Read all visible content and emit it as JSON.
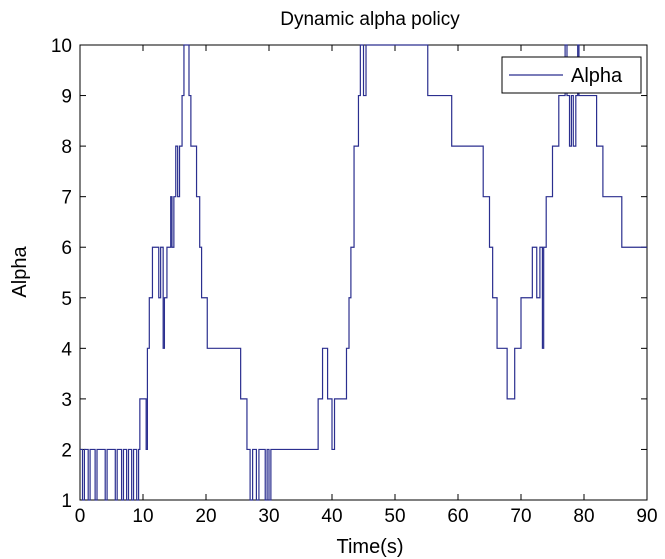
{
  "chart_data": {
    "type": "line",
    "title": "Dynamic alpha policy",
    "xlabel": "Time(s)",
    "ylabel": "Alpha",
    "xlim": [
      0,
      90
    ],
    "ylim": [
      1,
      10
    ],
    "xticks": [
      "0",
      "10",
      "20",
      "30",
      "40",
      "50",
      "60",
      "70",
      "80",
      "90"
    ],
    "yticks": [
      "1",
      "2",
      "3",
      "4",
      "5",
      "6",
      "7",
      "8",
      "9",
      "10"
    ],
    "grid": false,
    "legend_position": "top-right",
    "series": [
      {
        "name": "Alpha",
        "color": "#2b2f8f",
        "step": true,
        "points": [
          [
            0,
            2
          ],
          [
            0.4,
            1
          ],
          [
            0.7,
            2
          ],
          [
            1.3,
            1
          ],
          [
            1.6,
            2
          ],
          [
            2.4,
            1
          ],
          [
            2.7,
            2
          ],
          [
            4,
            1
          ],
          [
            4.3,
            2
          ],
          [
            5.6,
            1
          ],
          [
            5.9,
            2
          ],
          [
            6.6,
            1
          ],
          [
            6.9,
            2
          ],
          [
            7.4,
            1
          ],
          [
            7.7,
            2
          ],
          [
            8.2,
            1
          ],
          [
            8.5,
            2
          ],
          [
            9,
            1
          ],
          [
            9.3,
            2
          ],
          [
            9.5,
            3
          ],
          [
            10.5,
            2
          ],
          [
            10.7,
            4
          ],
          [
            11,
            5
          ],
          [
            11.5,
            6
          ],
          [
            12.5,
            5
          ],
          [
            12.8,
            6
          ],
          [
            13.2,
            4
          ],
          [
            13.4,
            5
          ],
          [
            13.8,
            6
          ],
          [
            14.4,
            7
          ],
          [
            14.6,
            6
          ],
          [
            14.9,
            7
          ],
          [
            15.2,
            8
          ],
          [
            15.5,
            7
          ],
          [
            15.8,
            8
          ],
          [
            16.2,
            9
          ],
          [
            16.5,
            10
          ],
          [
            17,
            10
          ],
          [
            17.3,
            9
          ],
          [
            17.6,
            8
          ],
          [
            18.5,
            7
          ],
          [
            19,
            6
          ],
          [
            19.3,
            5
          ],
          [
            20.2,
            4
          ],
          [
            22,
            4
          ],
          [
            24,
            4
          ],
          [
            25.5,
            3
          ],
          [
            26.5,
            2
          ],
          [
            27,
            1
          ],
          [
            27.4,
            2
          ],
          [
            28,
            1
          ],
          [
            28.4,
            2
          ],
          [
            29.4,
            1
          ],
          [
            29.7,
            2
          ],
          [
            30,
            1
          ],
          [
            30.3,
            2
          ],
          [
            33,
            2
          ],
          [
            36,
            2
          ],
          [
            37.8,
            3
          ],
          [
            38.5,
            4
          ],
          [
            39.3,
            3
          ],
          [
            40,
            2
          ],
          [
            40.4,
            3
          ],
          [
            41,
            3
          ],
          [
            42.3,
            4
          ],
          [
            42.7,
            5
          ],
          [
            43,
            6
          ],
          [
            43.5,
            8
          ],
          [
            44.2,
            9
          ],
          [
            44.5,
            10
          ],
          [
            45,
            9
          ],
          [
            45.4,
            10
          ],
          [
            46,
            10
          ],
          [
            47,
            10
          ],
          [
            48,
            10
          ],
          [
            49,
            10
          ],
          [
            51,
            10
          ],
          [
            53,
            10
          ],
          [
            54.6,
            10
          ],
          [
            55.2,
            9
          ],
          [
            56,
            9
          ],
          [
            58,
            9
          ],
          [
            59,
            8
          ],
          [
            61,
            8
          ],
          [
            63,
            8
          ],
          [
            64,
            7
          ],
          [
            65,
            6
          ],
          [
            65.5,
            5
          ],
          [
            66.2,
            4
          ],
          [
            67,
            4
          ],
          [
            67.8,
            3
          ],
          [
            68.5,
            3
          ],
          [
            69,
            4
          ],
          [
            70,
            5
          ],
          [
            71,
            5
          ],
          [
            71.8,
            6
          ],
          [
            72.5,
            5
          ],
          [
            73,
            6
          ],
          [
            73.4,
            4
          ],
          [
            73.6,
            6
          ],
          [
            74,
            7
          ],
          [
            75,
            8
          ],
          [
            76,
            9
          ],
          [
            77,
            10
          ],
          [
            77.3,
            9
          ],
          [
            77.7,
            8
          ],
          [
            78,
            9
          ],
          [
            78.3,
            8
          ],
          [
            78.7,
            9
          ],
          [
            79,
            10
          ],
          [
            79.2,
            9
          ],
          [
            80,
            9
          ],
          [
            81,
            9
          ],
          [
            82,
            8
          ],
          [
            83,
            7
          ],
          [
            84,
            7
          ],
          [
            85,
            7
          ],
          [
            86,
            6
          ],
          [
            88,
            6
          ],
          [
            90,
            6
          ]
        ]
      }
    ]
  }
}
